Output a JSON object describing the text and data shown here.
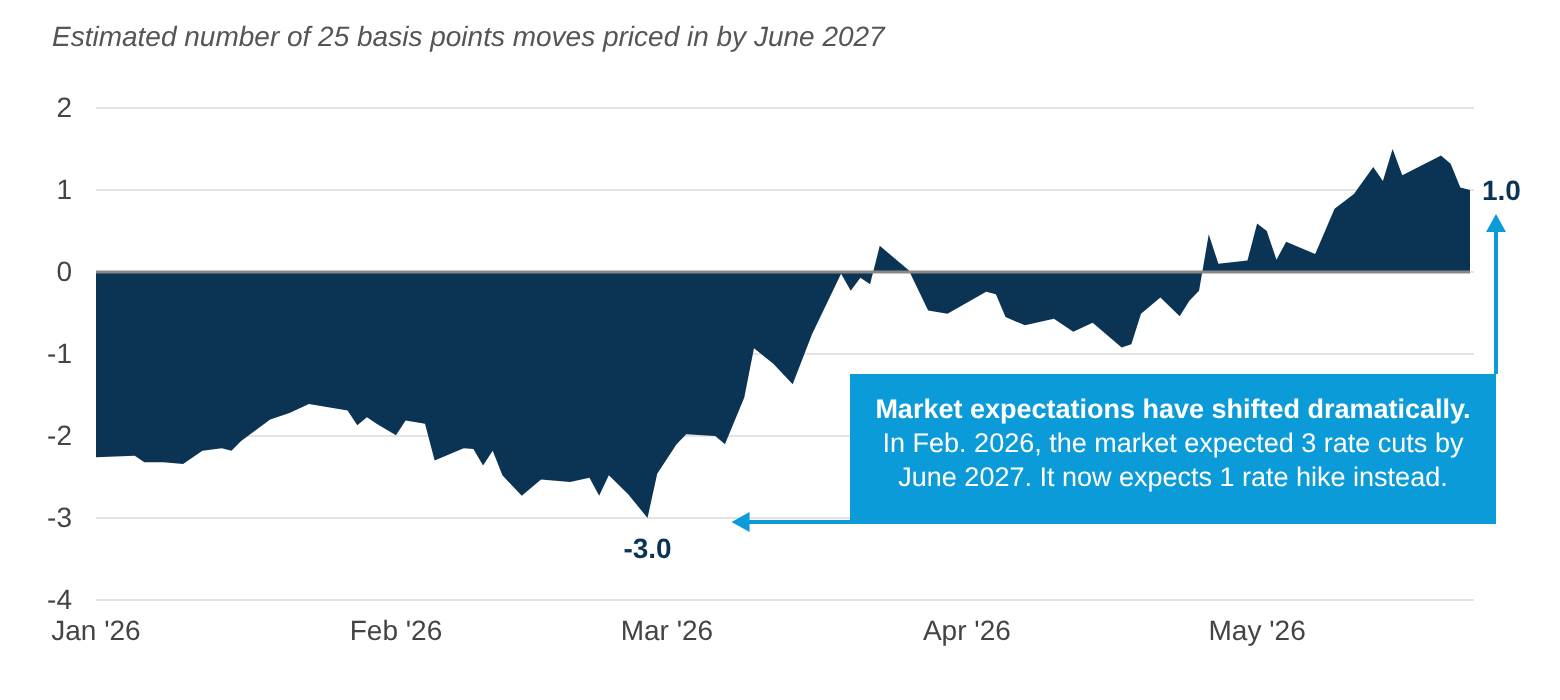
{
  "chart_data": {
    "type": "area",
    "title": "Estimated number of 25 basis points moves priced in by June 2027",
    "x": [
      "2026-01-01",
      "2026-01-05",
      "2026-01-06",
      "2026-01-08",
      "2026-01-10",
      "2026-01-12",
      "2026-01-14",
      "2026-01-15",
      "2026-01-16",
      "2026-01-19",
      "2026-01-21",
      "2026-01-23",
      "2026-01-25",
      "2026-01-27",
      "2026-01-28",
      "2026-01-29",
      "2026-01-30",
      "2026-02-01",
      "2026-02-02",
      "2026-02-04",
      "2026-02-05",
      "2026-02-08",
      "2026-02-09",
      "2026-02-10",
      "2026-02-11",
      "2026-02-12",
      "2026-02-14",
      "2026-02-16",
      "2026-02-19",
      "2026-02-21",
      "2026-02-22",
      "2026-02-23",
      "2026-02-25",
      "2026-02-27",
      "2026-02-28",
      "2026-03-02",
      "2026-03-03",
      "2026-03-06",
      "2026-03-07",
      "2026-03-09",
      "2026-03-10",
      "2026-03-12",
      "2026-03-14",
      "2026-03-16",
      "2026-03-19",
      "2026-03-20",
      "2026-03-21",
      "2026-03-22",
      "2026-03-23",
      "2026-03-26",
      "2026-03-28",
      "2026-03-30",
      "2026-04-03",
      "2026-04-04",
      "2026-04-05",
      "2026-04-07",
      "2026-04-10",
      "2026-04-12",
      "2026-04-14",
      "2026-04-17",
      "2026-04-18",
      "2026-04-19",
      "2026-04-21",
      "2026-04-23",
      "2026-04-24",
      "2026-04-25",
      "2026-04-26",
      "2026-04-27",
      "2026-04-30",
      "2026-05-01",
      "2026-05-02",
      "2026-05-03",
      "2026-05-04",
      "2026-05-07",
      "2026-05-09",
      "2026-05-11",
      "2026-05-13",
      "2026-05-14",
      "2026-05-15",
      "2026-05-16",
      "2026-05-19",
      "2026-05-20",
      "2026-05-21",
      "2026-05-22",
      "2026-05-23"
    ],
    "series": [
      {
        "color": "#0b3354",
        "values": [
          -2.26,
          -2.24,
          -2.32,
          -2.32,
          -2.34,
          -2.18,
          -2.15,
          -2.18,
          -2.06,
          -1.8,
          -1.72,
          -1.61,
          -1.65,
          -1.69,
          -1.87,
          -1.77,
          -1.85,
          -1.99,
          -1.81,
          -1.85,
          -2.3,
          -2.15,
          -2.16,
          -2.36,
          -2.18,
          -2.48,
          -2.73,
          -2.53,
          -2.56,
          -2.51,
          -2.73,
          -2.48,
          -2.71,
          -3.0,
          -2.46,
          -2.1,
          -1.98,
          -2.0,
          -2.1,
          -1.53,
          -0.93,
          -1.12,
          -1.37,
          -0.76,
          -0.02,
          -0.23,
          -0.07,
          -0.15,
          0.32,
          0.02,
          -0.47,
          -0.51,
          -0.24,
          -0.27,
          -0.55,
          -0.65,
          -0.57,
          -0.73,
          -0.62,
          -0.92,
          -0.88,
          -0.51,
          -0.31,
          -0.54,
          -0.35,
          -0.23,
          0.46,
          0.1,
          0.14,
          0.59,
          0.5,
          0.15,
          0.37,
          0.22,
          0.77,
          0.95,
          1.28,
          1.11,
          1.5,
          1.18,
          1.36,
          1.42,
          1.32,
          1.03,
          1.0
        ]
      }
    ],
    "xlim": [
      "2026-01-01",
      "2026-05-23"
    ],
    "xticks": [
      {
        "value": "2026-01-01",
        "label": "Jan '26"
      },
      {
        "value": "2026-02-01",
        "label": "Feb '26"
      },
      {
        "value": "2026-03-01",
        "label": "Mar '26"
      },
      {
        "value": "2026-04-01",
        "label": "Apr '26"
      },
      {
        "value": "2026-05-01",
        "label": "May '26"
      }
    ],
    "ylim": [
      -4,
      2
    ],
    "yticks": [
      -4,
      -3,
      -2,
      -1,
      0,
      1,
      2
    ],
    "grid": "y",
    "annotations": [
      {
        "text": "-3.0",
        "x": "2026-02-27",
        "y": -3.0
      },
      {
        "text": "1.0",
        "x": "2026-05-23",
        "y": 1.0
      },
      "Market expectations have shifted dramatically.",
      "In Feb. 2026, the market expected 3 rate cuts by June 2027. It now expects 1 rate hike instead."
    ]
  }
}
